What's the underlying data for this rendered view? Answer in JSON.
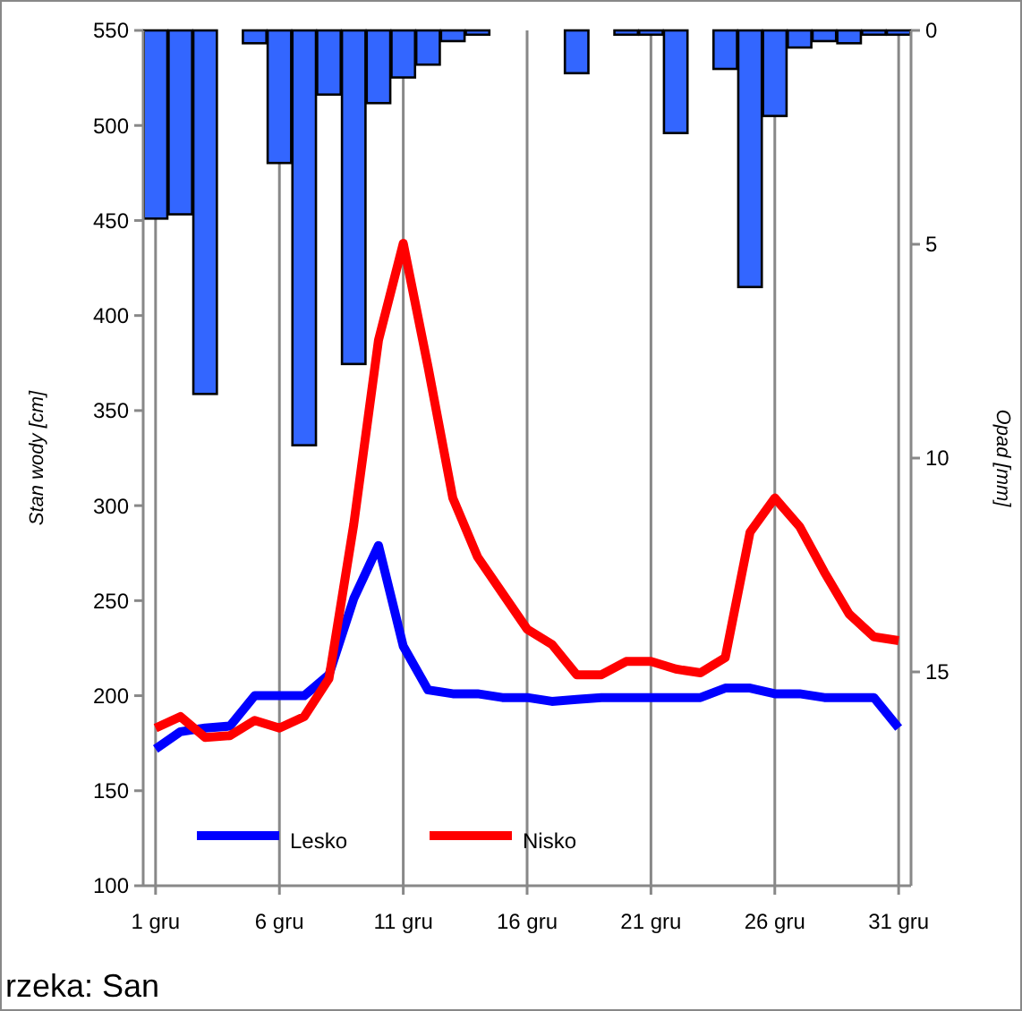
{
  "chart_data": {
    "type": "line",
    "ylabel": "Stan wody [cm]",
    "y2label": "Opad [mm]",
    "x": [
      1,
      2,
      3,
      4,
      5,
      6,
      7,
      8,
      9,
      10,
      11,
      12,
      13,
      14,
      15,
      16,
      17,
      18,
      19,
      20,
      21,
      22,
      23,
      24,
      25,
      26,
      27,
      28,
      29,
      30,
      31
    ],
    "xlim": [
      0.5,
      31.5
    ],
    "xticks": [
      {
        "value": 1,
        "label": "1 gru"
      },
      {
        "value": 6,
        "label": "6 gru"
      },
      {
        "value": 11,
        "label": "11 gru"
      },
      {
        "value": 16,
        "label": "16 gru"
      },
      {
        "value": 21,
        "label": "21 gru"
      },
      {
        "value": 26,
        "label": "26 gru"
      },
      {
        "value": 31,
        "label": "31 gru"
      }
    ],
    "ylim": [
      100,
      550
    ],
    "yticks": [
      100,
      150,
      200,
      250,
      300,
      350,
      400,
      450,
      500,
      550
    ],
    "y2lim": [
      20,
      0
    ],
    "y2ticks": [
      0,
      5,
      10,
      15
    ],
    "grid": "x",
    "legend": "bottom left",
    "marker": "none",
    "line_style": "solid",
    "series": [
      {
        "type": "bar",
        "axis": "y2",
        "color": "#3366ff",
        "values": [
          4.4,
          4.3,
          8.5,
          0,
          0.3,
          3.1,
          9.7,
          1.5,
          7.8,
          1.7,
          1.1,
          0.8,
          0.25,
          0.1,
          0,
          0,
          0,
          1.0,
          0,
          0.1,
          0.1,
          2.4,
          0,
          0.9,
          6.0,
          2.0,
          0.4,
          0.25,
          0.3,
          0.1,
          0.1
        ]
      },
      {
        "name": "Lesko",
        "color": "#0000ff",
        "values": [
          172,
          181,
          183,
          184,
          200,
          200,
          200,
          211,
          251,
          279,
          226,
          203,
          201,
          201,
          199,
          199,
          197,
          198,
          199,
          199,
          199,
          199,
          199,
          204,
          204,
          201,
          201,
          199,
          199,
          199,
          183
        ]
      },
      {
        "name": "Nisko",
        "color": "#ff0000",
        "values": [
          183,
          189,
          178,
          179,
          187,
          183,
          189,
          209,
          290,
          387,
          438,
          373,
          304,
          273,
          254,
          235,
          227,
          211,
          211,
          218,
          218,
          214,
          212,
          220,
          286,
          304,
          289,
          265,
          243,
          231,
          229
        ]
      }
    ],
    "annotations": [
      "rzeka: San"
    ]
  }
}
